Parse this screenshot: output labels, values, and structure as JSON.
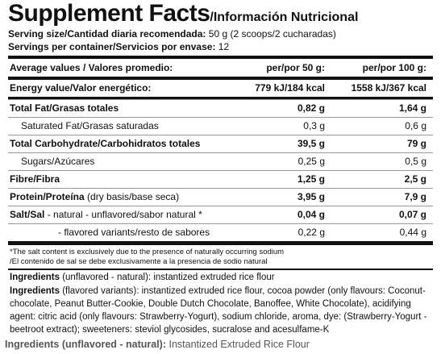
{
  "header": {
    "title": "Supplement Facts",
    "subtitle": "/Información Nutricional"
  },
  "serving": {
    "size_label": "Serving size/Cantidad diaria recomendada:",
    "size_value": "50 g (2 scoops/2 cucharadas)",
    "servings_label": "Servings per container/Servicios por envase:",
    "servings_value": "12"
  },
  "table": {
    "header": [
      "Average values / Valores promedio:",
      "per/por 50 g:",
      "per/por 100 g:"
    ],
    "rows": [
      {
        "label": "Energy value/Valor energético:",
        "per50": "779 kJ/184 kcal",
        "per100": "1558 kJ/367 kcal"
      },
      {
        "label": "Total Fat/Grasas totales",
        "per50": "0,82 g",
        "per100": "1,64 g"
      },
      {
        "label": "Saturated Fat/Grasas saturadas",
        "per50": "0,3 g",
        "per100": "0,6 g"
      },
      {
        "label": "Total Carbohydrate/Carbohidratos totales",
        "per50": "39,5 g",
        "per100": "79 g"
      },
      {
        "label": "Sugars/Azúcares",
        "per50": "0,25 g",
        "per100": "0,5 g"
      },
      {
        "label": "Fibre/Fibra",
        "per50": "1,25 g",
        "per100": "2,5 g"
      },
      {
        "label": "Protein/Proteína",
        "note": "(dry basis/base seca)",
        "per50": "3,95 g",
        "per100": "7,9 g"
      },
      {
        "label": "Salt/Sal",
        "note": "- natural - unflavored/sabor natural *",
        "per50": "0,04 g",
        "per100": "0,07 g"
      },
      {
        "label": "- flavored variants/resto de sabores",
        "per50": "0,22 g",
        "per100": "0,44 g"
      }
    ]
  },
  "footnotes": [
    "*The salt content is exclusively due to the presence of naturally occurring sodium",
    "/El contenido de sal se debe exclusivamente a la presencia de sodio natural"
  ],
  "ingredients": [
    {
      "label": "Ingredients",
      "note": "(unflavored - natural):",
      "text": "instantized extruded rice flour"
    },
    {
      "label": "Ingredients",
      "note": "(flavored variants):",
      "text": "instantized extruded rice flour, cocoa powder (only flavours: Coconut-chocolate, Peanut Butter-Cookie, Double Dutch Chocolate, Banoffee, White Chocolate), acidifying agent: citric acid (only flavours: Strawberry-Yogurt), sodium chloride, aroma, dye: (Strawberry-Yogurt - beetroot extract); sweeteners: steviol glycosides, sucralose and acesulfame-K"
    }
  ],
  "footer": {
    "label": "Ingredients (unflavored - natural):",
    "text": "Instantized Extruded Rice Flour"
  }
}
